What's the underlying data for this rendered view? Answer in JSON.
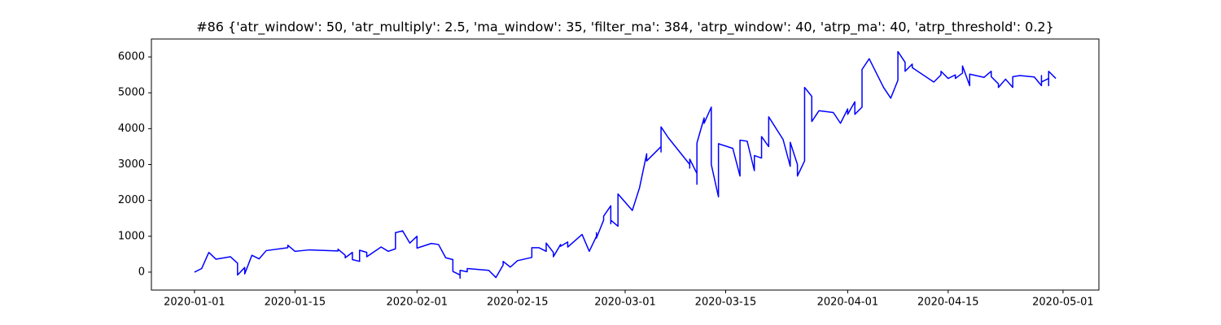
{
  "chart_data": {
    "type": "line",
    "title": "#86 {'atr_window': 50, 'atr_multiply': 2.5, 'ma_window': 35, 'filter_ma': 384, 'atrp_window': 40, 'atrp_ma': 40, 'atrp_threshold': 0.2}",
    "color": "#0000ff",
    "x": [
      "2020-01-01",
      "2020-01-02",
      "2020-01-03",
      "2020-01-04",
      "2020-01-06",
      "2020-01-07",
      "2020-01-07",
      "2020-01-08",
      "2020-01-08",
      "2020-01-09",
      "2020-01-10",
      "2020-01-11",
      "2020-01-14",
      "2020-01-14",
      "2020-01-15",
      "2020-01-16",
      "2020-01-17",
      "2020-01-21",
      "2020-01-21",
      "2020-01-22",
      "2020-01-22",
      "2020-01-23",
      "2020-01-23",
      "2020-01-24",
      "2020-01-24",
      "2020-01-25",
      "2020-01-25",
      "2020-01-27",
      "2020-01-28",
      "2020-01-29",
      "2020-01-29",
      "2020-01-30",
      "2020-01-31",
      "2020-02-01",
      "2020-02-01",
      "2020-02-03",
      "2020-02-04",
      "2020-02-05",
      "2020-02-06",
      "2020-02-06",
      "2020-02-07",
      "2020-02-07",
      "2020-02-07",
      "2020-02-08",
      "2020-02-08",
      "2020-02-11",
      "2020-02-12",
      "2020-02-13",
      "2020-02-13",
      "2020-02-14",
      "2020-02-15",
      "2020-02-17",
      "2020-02-17",
      "2020-02-18",
      "2020-02-19",
      "2020-02-19",
      "2020-02-20",
      "2020-02-20",
      "2020-02-21",
      "2020-02-21",
      "2020-02-22",
      "2020-02-22",
      "2020-02-24",
      "2020-02-25",
      "2020-02-26",
      "2020-02-26",
      "2020-02-26",
      "2020-02-27",
      "2020-02-27",
      "2020-02-28",
      "2020-02-28",
      "2020-02-28",
      "2020-02-28",
      "2020-02-29",
      "2020-02-29",
      "2020-02-29",
      "2020-03-02",
      "2020-03-03",
      "2020-03-04",
      "2020-03-04",
      "2020-03-06",
      "2020-03-06",
      "2020-03-06",
      "2020-03-07",
      "2020-03-10",
      "2020-03-10",
      "2020-03-10",
      "2020-03-11",
      "2020-03-11",
      "2020-03-11",
      "2020-03-11",
      "2020-03-12",
      "2020-03-12",
      "2020-03-13",
      "2020-03-13",
      "2020-03-13",
      "2020-03-13",
      "2020-03-14",
      "2020-03-14",
      "2020-03-16",
      "2020-03-17",
      "2020-03-17",
      "2020-03-18",
      "2020-03-19",
      "2020-03-19",
      "2020-03-20",
      "2020-03-20",
      "2020-03-21",
      "2020-03-21",
      "2020-03-23",
      "2020-03-24",
      "2020-03-24",
      "2020-03-24",
      "2020-03-24",
      "2020-03-25",
      "2020-03-25",
      "2020-03-26",
      "2020-03-26",
      "2020-03-26",
      "2020-03-27",
      "2020-03-27",
      "2020-03-28",
      "2020-03-30",
      "2020-03-31",
      "2020-04-01",
      "2020-04-01",
      "2020-04-02",
      "2020-04-02",
      "2020-04-03",
      "2020-04-03",
      "2020-04-04",
      "2020-04-06",
      "2020-04-07",
      "2020-04-08",
      "2020-04-08",
      "2020-04-08",
      "2020-04-08",
      "2020-04-09",
      "2020-04-09",
      "2020-04-10",
      "2020-04-10",
      "2020-04-13",
      "2020-04-14",
      "2020-04-14",
      "2020-04-15",
      "2020-04-16",
      "2020-04-16",
      "2020-04-17",
      "2020-04-17",
      "2020-04-18",
      "2020-04-18",
      "2020-04-20",
      "2020-04-21",
      "2020-04-21",
      "2020-04-22",
      "2020-04-22",
      "2020-04-23",
      "2020-04-24",
      "2020-04-24",
      "2020-04-25",
      "2020-04-27",
      "2020-04-28",
      "2020-04-28",
      "2020-04-28",
      "2020-04-28",
      "2020-04-29",
      "2020-04-29",
      "2020-04-29",
      "2020-04-29",
      "2020-04-30"
    ],
    "values": [
      0,
      100,
      550,
      360,
      430,
      250,
      -80,
      130,
      -50,
      470,
      370,
      600,
      680,
      750,
      580,
      600,
      620,
      590,
      640,
      470,
      400,
      550,
      350,
      300,
      610,
      550,
      430,
      700,
      580,
      650,
      1100,
      1150,
      810,
      1000,
      670,
      800,
      770,
      400,
      350,
      20,
      -80,
      -170,
      50,
      10,
      100,
      50,
      -150,
      200,
      300,
      140,
      320,
      410,
      680,
      680,
      580,
      810,
      550,
      430,
      770,
      720,
      840,
      700,
      1050,
      580,
      1000,
      1100,
      950,
      1450,
      1560,
      1850,
      1650,
      1350,
      1450,
      1280,
      1600,
      2180,
      1720,
      2350,
      3300,
      3100,
      3500,
      3350,
      4050,
      3750,
      3000,
      2900,
      3150,
      2750,
      2450,
      3000,
      3600,
      4300,
      4150,
      4600,
      3900,
      3300,
      3000,
      2100,
      3580,
      3450,
      2680,
      3680,
      3650,
      2830,
      3250,
      3180,
      3780,
      3500,
      4330,
      3700,
      2950,
      3500,
      3450,
      3620,
      3000,
      2680,
      3100,
      3800,
      5150,
      4900,
      4200,
      4500,
      4450,
      4150,
      4550,
      4400,
      4750,
      4400,
      4600,
      5650,
      5950,
      5150,
      4850,
      5350,
      5900,
      5400,
      6150,
      5850,
      5600,
      5800,
      5700,
      5300,
      5500,
      5600,
      5400,
      5500,
      5400,
      5550,
      5750,
      5200,
      5520,
      5430,
      5600,
      5450,
      5250,
      5150,
      5380,
      5150,
      5450,
      5480,
      5440,
      5200,
      5480,
      5300,
      5300,
      5400,
      5200,
      5300,
      5600,
      5400
    ],
    "xlim": [
      "2019-12-26",
      "2020-05-06"
    ],
    "xticks": [
      "2020-01-01",
      "2020-01-15",
      "2020-02-01",
      "2020-02-15",
      "2020-03-01",
      "2020-03-15",
      "2020-04-01",
      "2020-04-15",
      "2020-05-01"
    ],
    "ylim": [
      -500,
      6500
    ],
    "yticks": [
      0,
      1000,
      2000,
      3000,
      4000,
      5000,
      6000
    ],
    "grid": false
  }
}
